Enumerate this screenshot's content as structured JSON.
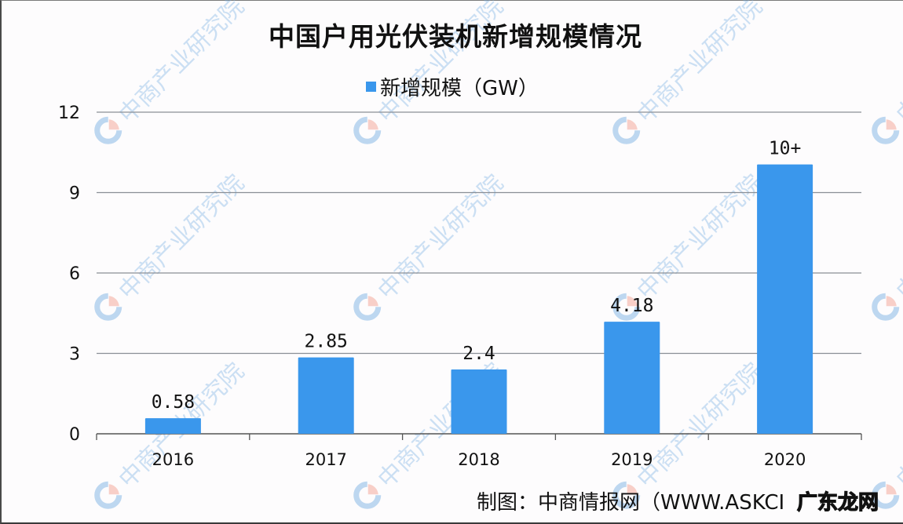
{
  "chart_data": {
    "type": "bar",
    "title": "中国户用光伏装机新增规模情况",
    "categories": [
      "2016",
      "2017",
      "2018",
      "2019",
      "2020"
    ],
    "series": [
      {
        "name": "新增规模（GW）",
        "values": [
          0.58,
          2.85,
          2.4,
          4.18,
          10.05
        ],
        "data_labels": [
          "0.58",
          "2.85",
          "2.4",
          "4.18",
          "10+"
        ],
        "color": "#3a97ec"
      }
    ],
    "xlabel": "",
    "ylabel": "",
    "ylim": [
      0,
      12
    ],
    "yticks": [
      0,
      3,
      6,
      9,
      12
    ],
    "grid": true,
    "legend_position": "top"
  },
  "legend": {
    "label": "新增规模（GW）",
    "color": "#3a97ec"
  },
  "source": "制图：中商情报网（WWW.ASKCI",
  "overlay_watermark": "广东龙网",
  "watermark_text": "中商产业研究院",
  "colors": {
    "bar": "#3a97ec",
    "grid": "#8a8f96",
    "axis": "#555555",
    "text": "#111111"
  }
}
